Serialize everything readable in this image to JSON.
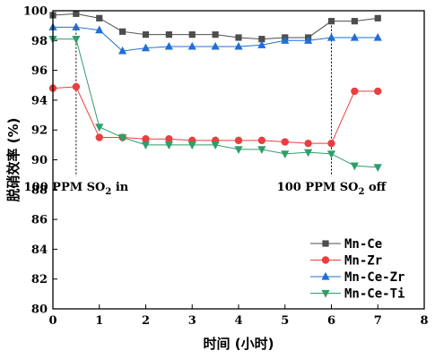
{
  "chart_data": {
    "type": "line",
    "xlabel": "时间 (小时)",
    "ylabel": "脱硝效率 (%)",
    "xlim": [
      0,
      8
    ],
    "ylim": [
      80,
      100
    ],
    "xticks": [
      0,
      1,
      2,
      3,
      4,
      5,
      6,
      7,
      8
    ],
    "yticks": [
      80,
      82,
      84,
      86,
      88,
      90,
      92,
      94,
      96,
      98,
      100
    ],
    "grid": false,
    "legend_position": "bottom-right",
    "annotations": [
      {
        "x": 0.5,
        "text": "100 PPM SO",
        "sub": "2",
        "suffix": " in"
      },
      {
        "x": 6.0,
        "text": "100 PPM SO",
        "sub": "2",
        "suffix": " off"
      }
    ],
    "series": [
      {
        "name": "Mn-Ce",
        "color": "#4d4d4d",
        "marker": "square",
        "x": [
          0,
          0.5,
          1,
          1.5,
          2,
          2.5,
          3,
          3.5,
          4,
          4.5,
          5,
          5.5,
          6,
          6.5,
          7
        ],
        "y": [
          99.7,
          99.8,
          99.5,
          98.6,
          98.4,
          98.4,
          98.4,
          98.4,
          98.2,
          98.1,
          98.2,
          98.2,
          99.3,
          99.3,
          99.5
        ]
      },
      {
        "name": "Mn-Zr",
        "color": "#e84040",
        "marker": "circle",
        "x": [
          0,
          0.5,
          1,
          1.5,
          2,
          2.5,
          3,
          3.5,
          4,
          4.5,
          5,
          5.5,
          6,
          6.5,
          7
        ],
        "y": [
          94.8,
          94.9,
          91.5,
          91.5,
          91.4,
          91.4,
          91.3,
          91.3,
          91.3,
          91.3,
          91.2,
          91.1,
          91.1,
          94.6,
          94.6
        ]
      },
      {
        "name": "Mn-Ce-Zr",
        "color": "#1f6fd6",
        "marker": "triangle-up",
        "x": [
          0,
          0.5,
          1,
          1.5,
          2,
          2.5,
          3,
          3.5,
          4,
          4.5,
          5,
          5.5,
          6,
          6.5,
          7
        ],
        "y": [
          98.9,
          98.9,
          98.7,
          97.3,
          97.5,
          97.6,
          97.6,
          97.6,
          97.6,
          97.7,
          98.0,
          98.0,
          98.2,
          98.2,
          98.2
        ]
      },
      {
        "name": "Mn-Ce-Ti",
        "color": "#2e9e6a",
        "marker": "triangle-down",
        "x": [
          0,
          0.5,
          1,
          1.5,
          2,
          2.5,
          3,
          3.5,
          4,
          4.5,
          5,
          5.5,
          6,
          6.5,
          7
        ],
        "y": [
          98.1,
          98.1,
          92.2,
          91.5,
          91.0,
          91.0,
          91.0,
          91.0,
          90.7,
          90.7,
          90.4,
          90.5,
          90.4,
          89.6,
          89.5
        ]
      }
    ]
  }
}
